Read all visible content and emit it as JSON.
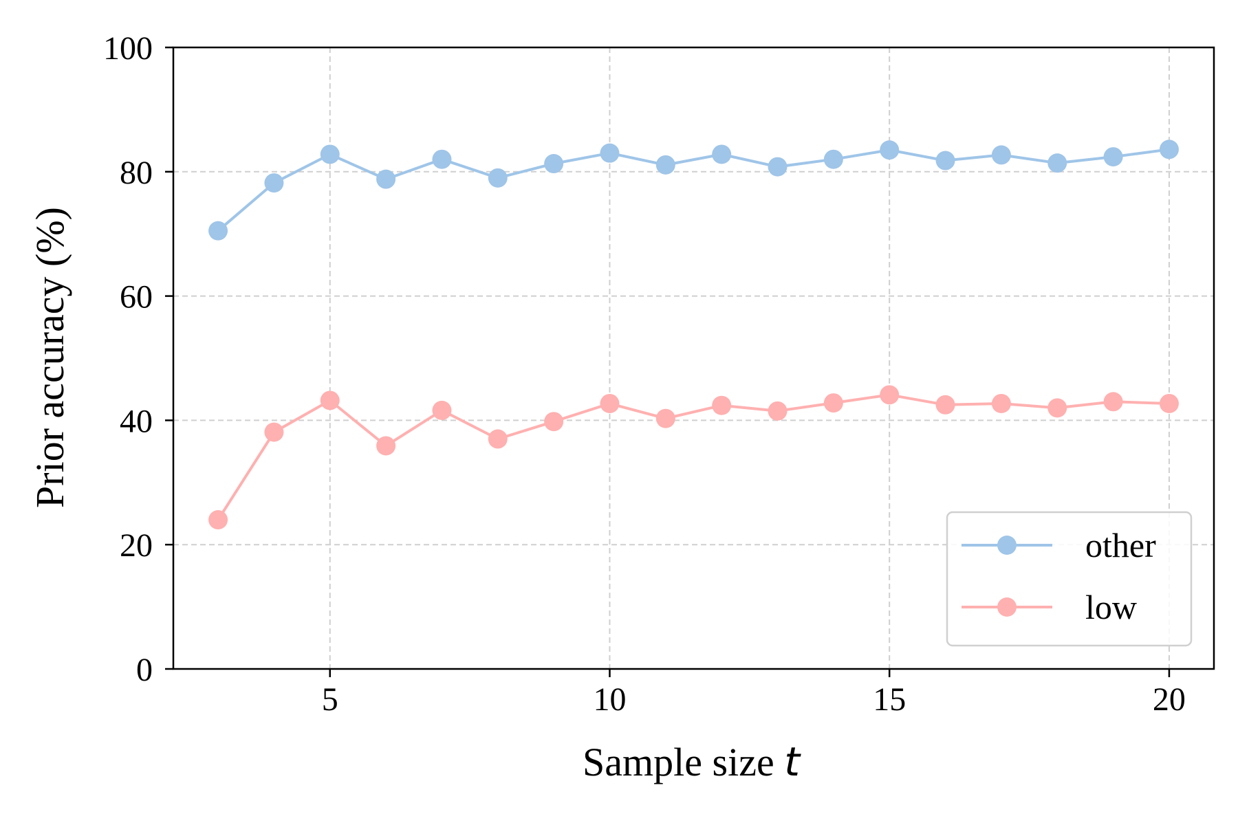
{
  "chart_data": {
    "type": "line",
    "xlabel": "Sample size",
    "xlabel_var": "t",
    "ylabel": "Prior accuracy (%)",
    "xlim": [
      2.2,
      20.8
    ],
    "ylim": [
      0,
      100
    ],
    "xticks": [
      5,
      10,
      15,
      20
    ],
    "yticks": [
      0,
      20,
      40,
      60,
      80,
      100
    ],
    "grid": true,
    "legend_position": "lower-right",
    "x": [
      3,
      4,
      5,
      6,
      7,
      8,
      9,
      10,
      11,
      12,
      13,
      14,
      15,
      16,
      17,
      18,
      19,
      20
    ],
    "series": [
      {
        "name": "other",
        "color": "#9fc5e8",
        "values": [
          70.5,
          78.2,
          82.8,
          78.8,
          82.0,
          79.0,
          81.3,
          83.0,
          81.1,
          82.8,
          80.8,
          82.0,
          83.5,
          81.8,
          82.7,
          81.4,
          82.4,
          83.6
        ]
      },
      {
        "name": "low",
        "color": "#ffb0b0",
        "values": [
          24.0,
          38.1,
          43.2,
          35.9,
          41.6,
          37.0,
          39.8,
          42.7,
          40.3,
          42.4,
          41.5,
          42.8,
          44.1,
          42.5,
          42.7,
          42.0,
          43.0,
          42.7
        ]
      }
    ]
  }
}
